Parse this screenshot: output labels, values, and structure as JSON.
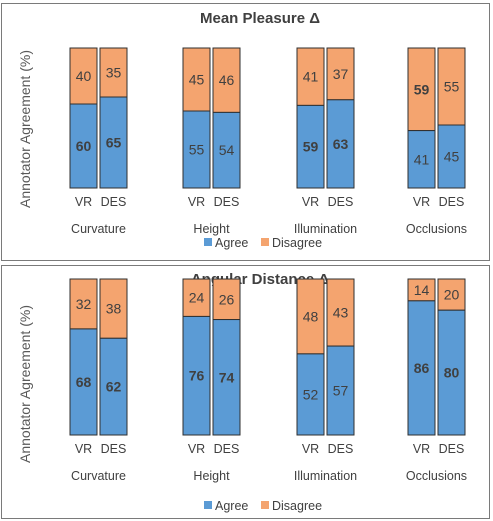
{
  "chart_data": [
    {
      "type": "bar",
      "stacked": true,
      "title": "Mean Pleasure Δ",
      "ylabel": "Annotator Agreement (%)",
      "ylim": [
        0,
        100
      ],
      "groups": [
        "Curvature",
        "Height",
        "Illumination",
        "Occlusions"
      ],
      "categories": [
        "VR",
        "DES"
      ],
      "series": [
        {
          "name": "Agree",
          "color": "#5b9bd5",
          "values": [
            [
              60,
              65
            ],
            [
              55,
              54
            ],
            [
              59,
              63
            ],
            [
              41,
              45
            ]
          ]
        },
        {
          "name": "Disagree",
          "color": "#f4a46f",
          "values": [
            [
              40,
              35
            ],
            [
              45,
              46
            ],
            [
              41,
              37
            ],
            [
              59,
              55
            ]
          ]
        }
      ],
      "bold_labels": [
        [
          true,
          true
        ],
        [
          false,
          false
        ],
        [
          true,
          true
        ],
        [
          false,
          false
        ]
      ],
      "bold_labels_disagree": [
        [
          false,
          false
        ],
        [
          false,
          false
        ],
        [
          false,
          false
        ],
        [
          true,
          false
        ]
      ],
      "legend": "bottom"
    },
    {
      "type": "bar",
      "stacked": true,
      "title": "Angular Distance Δ",
      "ylabel": "Annotator Agreement (%)",
      "ylim": [
        0,
        100
      ],
      "groups": [
        "Curvature",
        "Height",
        "Illumination",
        "Occlusions"
      ],
      "categories": [
        "VR",
        "DES"
      ],
      "series": [
        {
          "name": "Agree",
          "color": "#5b9bd5",
          "values": [
            [
              68,
              62
            ],
            [
              76,
              74
            ],
            [
              52,
              57
            ],
            [
              86,
              80
            ]
          ]
        },
        {
          "name": "Disagree",
          "color": "#f4a46f",
          "values": [
            [
              32,
              38
            ],
            [
              24,
              26
            ],
            [
              48,
              43
            ],
            [
              14,
              20
            ]
          ]
        }
      ],
      "bold_labels": [
        [
          true,
          true
        ],
        [
          true,
          true
        ],
        [
          false,
          false
        ],
        [
          true,
          true
        ]
      ],
      "bold_labels_disagree": [
        [
          false,
          false
        ],
        [
          false,
          false
        ],
        [
          false,
          false
        ],
        [
          false,
          false
        ]
      ],
      "legend": "bottom"
    }
  ]
}
